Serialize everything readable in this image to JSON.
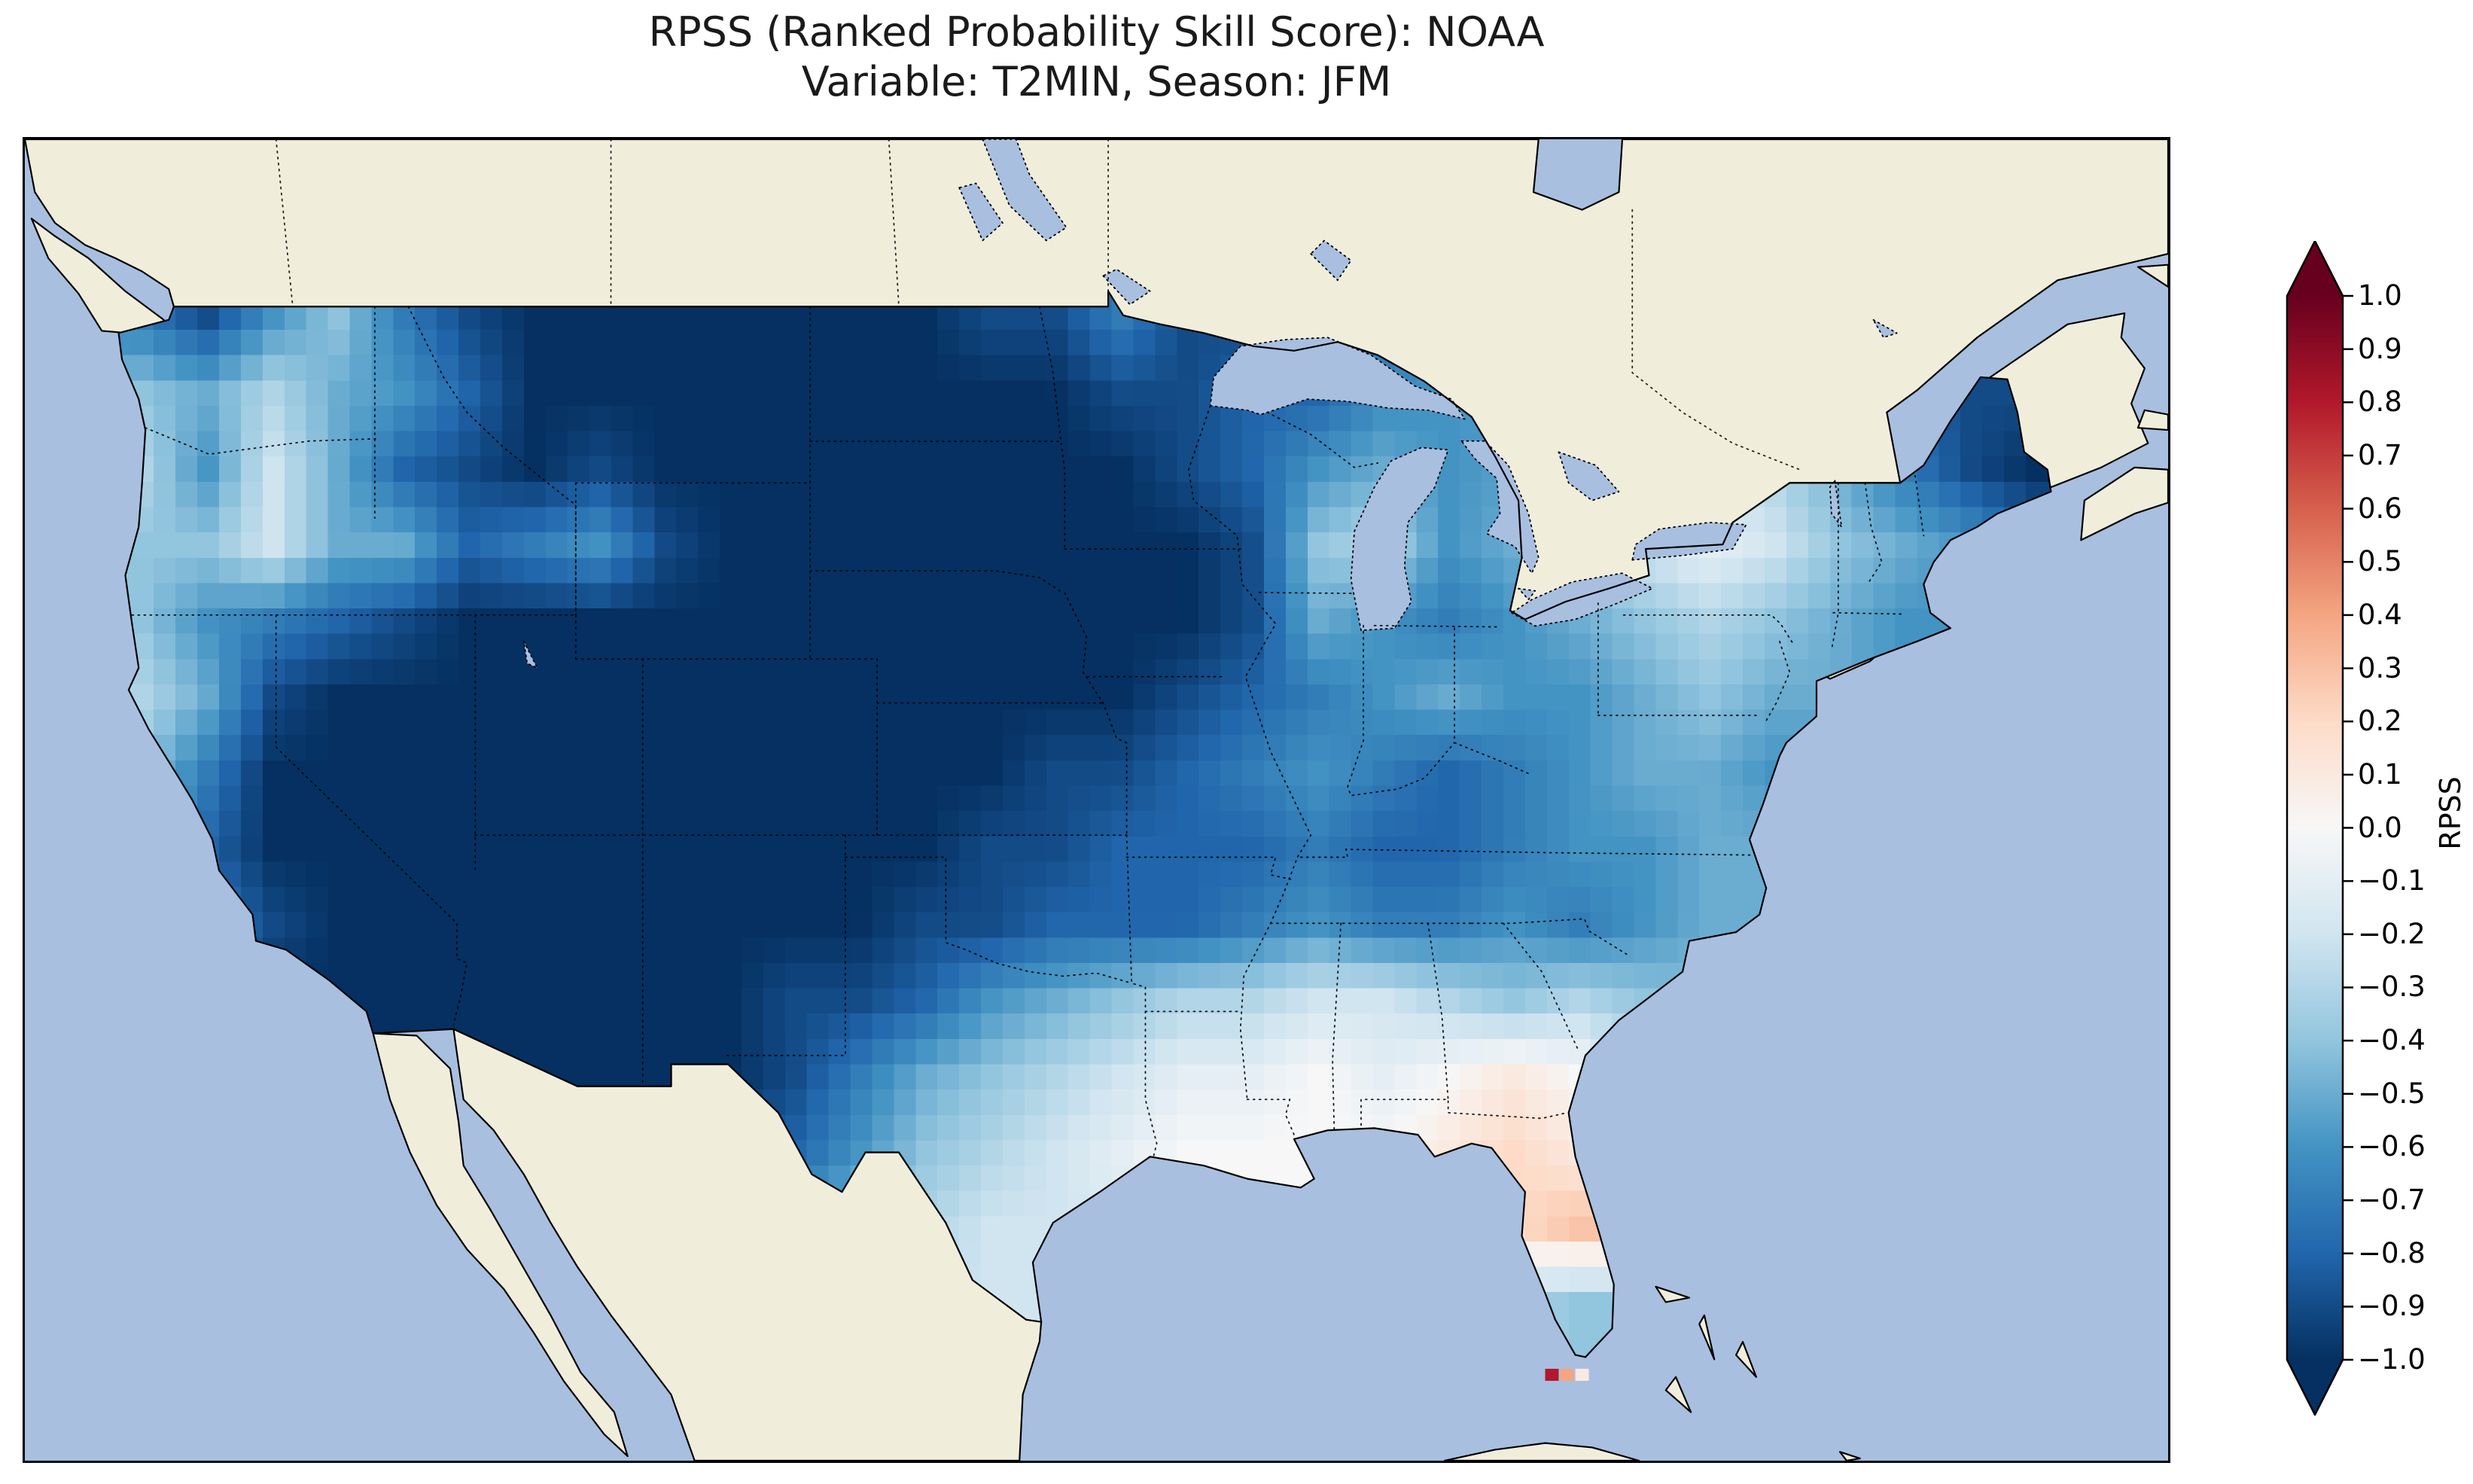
{
  "title": {
    "line1": "RPSS (Ranked Probability Skill Score): NOAA",
    "line2": "Variable: T2MIN, Season: JFM"
  },
  "colorbar": {
    "label": "RPSS",
    "range": [
      -1.0,
      1.0
    ],
    "ticks": [
      "1.0",
      "0.9",
      "0.8",
      "0.7",
      "0.6",
      "0.5",
      "0.4",
      "0.3",
      "0.2",
      "0.1",
      "0.0",
      "−0.1",
      "−0.2",
      "−0.3",
      "−0.4",
      "−0.5",
      "−0.6",
      "−0.7",
      "−0.8",
      "−0.9",
      "−1.0"
    ]
  },
  "colors": {
    "ocean": "#a9bfe0",
    "land": "#f0eedb",
    "coastline": "#000000",
    "figure_background": "#ffffff"
  },
  "chart_data": {
    "type": "heatmap",
    "title": "RPSS (Ranked Probability Skill Score): NOAA",
    "variable": "T2MIN",
    "season": "JFM",
    "source": "NOAA",
    "value_label": "RPSS",
    "value_range": [
      -1.0,
      1.0
    ],
    "map_extent": {
      "lon": [
        -127.5,
        -63.5
      ],
      "lat": [
        22.8,
        52.8
      ]
    },
    "colormap": [
      "#053061",
      "#2166ac",
      "#4393c3",
      "#92c5de",
      "#d1e5f0",
      "#f7f7f7",
      "#fddbc7",
      "#f4a582",
      "#d6604d",
      "#b2182b",
      "#67001f"
    ],
    "grid": {
      "lon_start": -125.0,
      "dlon": 1.95,
      "lat_start": 49.6,
      "dlat": 1.72,
      "ncols": 30,
      "nrows": 14,
      "values": [
        [
          -0.7,
          -0.9,
          -0.6,
          -0.4,
          -0.7,
          -0.9,
          -1.0,
          -1.0,
          -1.0,
          -1.0,
          -1.0,
          -1.0,
          -1.0,
          -0.9,
          -0.9,
          -0.7,
          -0.9,
          -0.9,
          null,
          null,
          null,
          null,
          null,
          null,
          null,
          null,
          null,
          null,
          null,
          null
        ],
        [
          -0.4,
          -0.5,
          -0.3,
          -0.5,
          -0.6,
          -0.8,
          -1.0,
          -1.0,
          -1.0,
          -1.0,
          -1.0,
          -1.0,
          -1.0,
          -1.0,
          -1.0,
          -0.9,
          -0.9,
          -0.8,
          -0.8,
          null,
          null,
          null,
          null,
          null,
          null,
          null,
          null,
          null,
          -0.9,
          -0.9
        ],
        [
          -0.3,
          -0.6,
          -0.2,
          -0.5,
          -0.8,
          -0.9,
          -1.0,
          -0.9,
          -1.0,
          -1.0,
          -1.0,
          -1.0,
          -1.0,
          -1.0,
          -1.0,
          -1.0,
          -0.9,
          -0.8,
          -0.6,
          -0.5,
          -0.6,
          null,
          null,
          null,
          null,
          -0.3,
          -0.5,
          -0.7,
          -0.9,
          -1.0
        ],
        [
          -0.4,
          -0.4,
          -0.2,
          -0.5,
          -0.5,
          -0.8,
          -0.7,
          -0.6,
          -0.9,
          -1.0,
          -1.0,
          -1.0,
          -1.0,
          -1.0,
          -1.0,
          -1.0,
          -1.0,
          -0.9,
          -0.4,
          -0.3,
          -0.6,
          -0.5,
          null,
          -0.2,
          -0.1,
          -0.2,
          -0.4,
          -0.5,
          -0.6,
          null
        ],
        [
          -0.4,
          -0.6,
          -0.7,
          -0.8,
          -0.9,
          -1.0,
          -1.0,
          -1.0,
          -1.0,
          -1.0,
          -1.0,
          -1.0,
          -1.0,
          -1.0,
          -1.0,
          -1.0,
          -1.0,
          -0.9,
          -0.5,
          -0.6,
          -0.7,
          -0.6,
          -0.5,
          -0.4,
          -0.3,
          -0.4,
          -0.5,
          -0.6,
          null,
          null
        ],
        [
          -0.3,
          -0.5,
          -0.9,
          -1.0,
          -1.0,
          -1.0,
          -1.0,
          -1.0,
          -1.0,
          -1.0,
          -1.0,
          -1.0,
          -1.0,
          -1.0,
          -1.0,
          -1.0,
          -0.9,
          -0.8,
          -0.7,
          -0.6,
          -0.5,
          -0.6,
          -0.6,
          -0.5,
          -0.4,
          -0.5,
          null,
          null,
          null,
          null
        ],
        [
          -0.4,
          -0.7,
          -1.0,
          -1.0,
          -1.0,
          -1.0,
          -1.0,
          -1.0,
          -1.0,
          -1.0,
          -1.0,
          -1.0,
          -1.0,
          -1.0,
          -0.9,
          -0.9,
          -0.8,
          -0.7,
          -0.6,
          -0.7,
          -0.8,
          -0.7,
          -0.6,
          -0.5,
          -0.5,
          -0.6,
          null,
          null,
          null,
          null
        ],
        [
          -0.5,
          -0.8,
          -1.0,
          -1.0,
          -1.0,
          -1.0,
          -1.0,
          -1.0,
          -1.0,
          -1.0,
          -1.0,
          -1.0,
          -1.0,
          -0.9,
          -0.9,
          -0.8,
          -0.8,
          -0.8,
          -0.7,
          -0.8,
          -0.8,
          -0.7,
          -0.6,
          -0.6,
          -0.5,
          -0.5,
          null,
          null,
          null,
          null
        ],
        [
          -0.5,
          -0.7,
          -0.9,
          -1.0,
          -1.0,
          -1.0,
          -1.0,
          -1.0,
          -1.0,
          -1.0,
          -1.0,
          -1.0,
          -0.9,
          -0.9,
          -0.8,
          -0.8,
          -0.8,
          -0.7,
          -0.6,
          -0.7,
          -0.7,
          -0.6,
          -0.7,
          -0.6,
          -0.5,
          null,
          null,
          null,
          null,
          null
        ],
        [
          null,
          -0.8,
          -1.0,
          -1.0,
          -1.0,
          -1.0,
          -1.0,
          -1.0,
          -1.0,
          -1.0,
          -0.9,
          -0.9,
          -0.8,
          -0.6,
          -0.5,
          -0.4,
          -0.3,
          -0.3,
          -0.2,
          -0.2,
          -0.3,
          -0.4,
          -0.3,
          -0.4,
          null,
          null,
          null,
          null,
          null,
          null
        ],
        [
          null,
          null,
          null,
          null,
          null,
          null,
          null,
          null,
          -1.0,
          -1.0,
          -0.9,
          -0.7,
          -0.5,
          -0.4,
          -0.3,
          -0.2,
          -0.1,
          -0.1,
          0.0,
          -0.1,
          0.0,
          0.1,
          0.0,
          null,
          null,
          null,
          null,
          null,
          null,
          null
        ],
        [
          null,
          null,
          null,
          null,
          null,
          null,
          null,
          null,
          null,
          null,
          -0.8,
          -0.6,
          -0.4,
          -0.3,
          -0.2,
          -0.1,
          0.0,
          0.0,
          0.0,
          0.0,
          0.1,
          0.2,
          0.1,
          null,
          null,
          null,
          null,
          null,
          null,
          null
        ],
        [
          null,
          null,
          null,
          null,
          null,
          null,
          null,
          null,
          null,
          null,
          null,
          -0.4,
          -0.3,
          -0.2,
          -0.2,
          null,
          null,
          null,
          null,
          null,
          null,
          0.2,
          0.3,
          null,
          null,
          null,
          null,
          null,
          null,
          null
        ],
        [
          null,
          null,
          null,
          null,
          null,
          null,
          null,
          null,
          null,
          null,
          null,
          null,
          null,
          -0.2,
          null,
          null,
          null,
          null,
          null,
          null,
          null,
          -0.3,
          -0.4,
          null,
          null,
          null,
          null,
          null,
          null,
          null
        ]
      ]
    },
    "extra_cells": [
      {
        "lon": -81.9,
        "lat": 24.75,
        "value": 0.8
      },
      {
        "lon": -81.45,
        "lat": 24.75,
        "value": 0.4
      },
      {
        "lon": -81.0,
        "lat": 24.75,
        "value": 0.1
      }
    ]
  }
}
